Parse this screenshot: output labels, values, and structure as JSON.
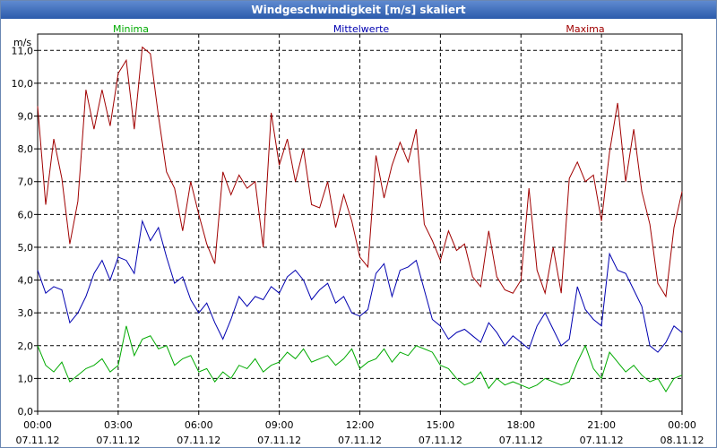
{
  "window": {
    "title": "Windgeschwindigkeit [m/s] skaliert"
  },
  "chart_data": {
    "type": "line",
    "title": "Windgeschwindigkeit [m/s] skaliert",
    "ylabel": "m/s",
    "xlabel": "",
    "ylim": [
      0,
      11.5
    ],
    "xlim": [
      0,
      24
    ],
    "grid": true,
    "y_ticks": [
      "0,0",
      "1,0",
      "2,0",
      "3,0",
      "4,0",
      "5,0",
      "6,0",
      "7,0",
      "8,0",
      "9,0",
      "10,0",
      "11,0"
    ],
    "x_ticks": [
      {
        "time": "00:00",
        "date": "07.11.12"
      },
      {
        "time": "03:00",
        "date": "07.11.12"
      },
      {
        "time": "06:00",
        "date": "07.11.12"
      },
      {
        "time": "09:00",
        "date": "07.11.12"
      },
      {
        "time": "12:00",
        "date": "07.11.12"
      },
      {
        "time": "15:00",
        "date": "07.11.12"
      },
      {
        "time": "18:00",
        "date": "07.11.12"
      },
      {
        "time": "21:00",
        "date": "07.11.12"
      },
      {
        "time": "00:00",
        "date": "08.11.12"
      }
    ],
    "legend_placement": "top",
    "series": [
      {
        "name": "Minima",
        "color": "#00aa00",
        "x": [
          0,
          0.3,
          0.6,
          0.9,
          1.2,
          1.5,
          1.8,
          2.1,
          2.4,
          2.7,
          3.0,
          3.3,
          3.6,
          3.9,
          4.2,
          4.5,
          4.8,
          5.1,
          5.4,
          5.7,
          6.0,
          6.3,
          6.6,
          6.9,
          7.2,
          7.5,
          7.8,
          8.1,
          8.4,
          8.7,
          9.0,
          9.3,
          9.6,
          9.9,
          10.2,
          10.5,
          10.8,
          11.1,
          11.4,
          11.7,
          12.0,
          12.3,
          12.6,
          12.9,
          13.2,
          13.5,
          13.8,
          14.1,
          14.4,
          14.7,
          15.0,
          15.3,
          15.6,
          15.9,
          16.2,
          16.5,
          16.8,
          17.1,
          17.4,
          17.7,
          18.0,
          18.3,
          18.6,
          18.9,
          19.2,
          19.5,
          19.8,
          20.1,
          20.4,
          20.7,
          21.0,
          21.3,
          21.6,
          21.9,
          22.2,
          22.5,
          22.8,
          23.1,
          23.4,
          23.7,
          24.0
        ],
        "values": [
          2.0,
          1.4,
          1.2,
          1.5,
          0.9,
          1.1,
          1.3,
          1.4,
          1.6,
          1.2,
          1.4,
          2.6,
          1.7,
          2.2,
          2.3,
          1.9,
          2.0,
          1.4,
          1.6,
          1.7,
          1.2,
          1.3,
          0.9,
          1.2,
          1.0,
          1.4,
          1.3,
          1.6,
          1.2,
          1.4,
          1.5,
          1.8,
          1.6,
          1.9,
          1.5,
          1.6,
          1.7,
          1.4,
          1.6,
          1.9,
          1.3,
          1.5,
          1.6,
          1.9,
          1.5,
          1.8,
          1.7,
          2.0,
          1.9,
          1.8,
          1.4,
          1.3,
          1.0,
          0.8,
          0.9,
          1.2,
          0.7,
          1.0,
          0.8,
          0.9,
          0.8,
          0.7,
          0.8,
          1.0,
          0.9,
          0.8,
          0.9,
          1.5,
          2.0,
          1.3,
          1.0,
          1.8,
          1.5,
          1.2,
          1.4,
          1.1,
          0.9,
          1.0,
          0.6,
          1.0,
          1.1
        ]
      },
      {
        "name": "Mittelwerte",
        "color": "#0000b0",
        "x": [
          0,
          0.3,
          0.6,
          0.9,
          1.2,
          1.5,
          1.8,
          2.1,
          2.4,
          2.7,
          3.0,
          3.3,
          3.6,
          3.9,
          4.2,
          4.5,
          4.8,
          5.1,
          5.4,
          5.7,
          6.0,
          6.3,
          6.6,
          6.9,
          7.2,
          7.5,
          7.8,
          8.1,
          8.4,
          8.7,
          9.0,
          9.3,
          9.6,
          9.9,
          10.2,
          10.5,
          10.8,
          11.1,
          11.4,
          11.7,
          12.0,
          12.3,
          12.6,
          12.9,
          13.2,
          13.5,
          13.8,
          14.1,
          14.4,
          14.7,
          15.0,
          15.3,
          15.6,
          15.9,
          16.2,
          16.5,
          16.8,
          17.1,
          17.4,
          17.7,
          18.0,
          18.3,
          18.6,
          18.9,
          19.2,
          19.5,
          19.8,
          20.1,
          20.4,
          20.7,
          21.0,
          21.3,
          21.6,
          21.9,
          22.2,
          22.5,
          22.8,
          23.1,
          23.4,
          23.7,
          24.0
        ],
        "values": [
          4.3,
          3.6,
          3.8,
          3.7,
          2.7,
          3.0,
          3.5,
          4.2,
          4.6,
          4.0,
          4.7,
          4.6,
          4.2,
          5.8,
          5.2,
          5.6,
          4.7,
          3.9,
          4.1,
          3.4,
          3.0,
          3.3,
          2.7,
          2.2,
          2.8,
          3.5,
          3.2,
          3.5,
          3.4,
          3.8,
          3.6,
          4.1,
          4.3,
          4.0,
          3.4,
          3.7,
          3.9,
          3.3,
          3.5,
          3.0,
          2.9,
          3.1,
          4.2,
          4.5,
          3.5,
          4.3,
          4.4,
          4.6,
          3.7,
          2.8,
          2.6,
          2.2,
          2.4,
          2.5,
          2.3,
          2.1,
          2.7,
          2.4,
          2.0,
          2.3,
          2.1,
          1.9,
          2.6,
          3.0,
          2.5,
          2.0,
          2.2,
          3.8,
          3.1,
          2.8,
          2.6,
          4.8,
          4.3,
          4.2,
          3.7,
          3.2,
          2.0,
          1.8,
          2.1,
          2.6,
          2.4
        ]
      },
      {
        "name": "Maxima",
        "color": "#a00000",
        "x": [
          0,
          0.3,
          0.6,
          0.9,
          1.2,
          1.5,
          1.8,
          2.1,
          2.4,
          2.7,
          3.0,
          3.3,
          3.6,
          3.9,
          4.2,
          4.5,
          4.8,
          5.1,
          5.4,
          5.7,
          6.0,
          6.3,
          6.6,
          6.9,
          7.2,
          7.5,
          7.8,
          8.1,
          8.4,
          8.7,
          9.0,
          9.3,
          9.6,
          9.9,
          10.2,
          10.5,
          10.8,
          11.1,
          11.4,
          11.7,
          12.0,
          12.3,
          12.6,
          12.9,
          13.2,
          13.5,
          13.8,
          14.1,
          14.4,
          14.7,
          15.0,
          15.3,
          15.6,
          15.9,
          16.2,
          16.5,
          16.8,
          17.1,
          17.4,
          17.7,
          18.0,
          18.3,
          18.6,
          18.9,
          19.2,
          19.5,
          19.8,
          20.1,
          20.4,
          20.7,
          21.0,
          21.3,
          21.6,
          21.9,
          22.2,
          22.5,
          22.8,
          23.1,
          23.4,
          23.7,
          24.0
        ],
        "values": [
          9.3,
          6.3,
          8.3,
          7.1,
          5.1,
          6.4,
          9.8,
          8.6,
          9.8,
          8.7,
          10.3,
          10.7,
          8.6,
          11.1,
          10.9,
          9.0,
          7.3,
          6.8,
          5.5,
          7.0,
          6.0,
          5.1,
          4.5,
          7.3,
          6.6,
          7.2,
          6.8,
          7.0,
          5.0,
          9.1,
          7.5,
          8.3,
          7.0,
          8.0,
          6.3,
          6.2,
          7.0,
          5.6,
          6.6,
          5.8,
          4.7,
          4.4,
          7.8,
          6.5,
          7.5,
          8.2,
          7.6,
          8.6,
          5.7,
          5.2,
          4.6,
          5.5,
          4.9,
          5.1,
          4.1,
          3.8,
          5.5,
          4.1,
          3.7,
          3.6,
          4.0,
          6.8,
          4.3,
          3.6,
          5.0,
          3.6,
          7.1,
          7.6,
          7.0,
          7.2,
          5.8,
          7.9,
          9.4,
          7.0,
          8.6,
          6.7,
          5.7,
          3.9,
          3.5,
          5.6,
          6.7
        ]
      }
    ]
  }
}
